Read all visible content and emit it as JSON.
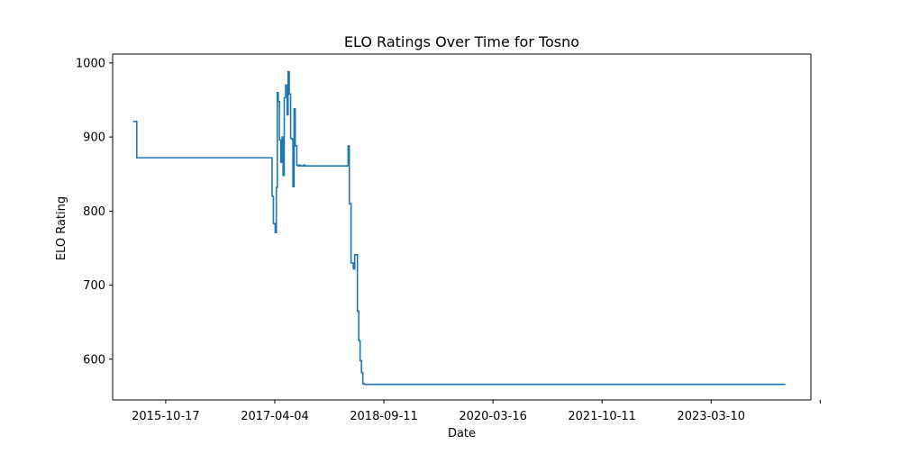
{
  "chart_data": {
    "type": "line",
    "title": "ELO Ratings Over Time for Tosno",
    "xlabel": "Date",
    "ylabel": "ELO Rating",
    "x_axis_type": "date",
    "xlim": [
      "2015-01-15",
      "2024-12-10"
    ],
    "ylim": [
      545,
      1012
    ],
    "grid": false,
    "line_color": "#1f77b4",
    "step": "post",
    "x_ticks": [
      "2015-10-17",
      "2017-04-04",
      "2018-09-11",
      "2020-03-16",
      "2021-10-11",
      "2023-03-10",
      ""
    ],
    "y_ticks": [
      600,
      700,
      800,
      900,
      1000
    ],
    "series": [
      {
        "x": [
          "2015-05-01",
          "2015-05-20",
          "2017-04-20",
          "2017-04-27",
          "2017-05-06",
          "2017-05-12",
          "2017-05-17",
          "2017-05-22",
          "2017-05-28",
          "2017-06-04",
          "2017-06-11",
          "2017-06-16",
          "2017-06-22",
          "2017-06-29",
          "2017-07-07",
          "2017-07-12",
          "2017-07-18",
          "2017-07-25",
          "2017-08-01",
          "2017-08-06",
          "2017-08-12",
          "2017-08-18",
          "2017-08-26",
          "2017-09-02",
          "2017-09-09",
          "2017-09-15",
          "2017-09-23",
          "2017-09-30",
          "2017-10-07",
          "2017-10-15",
          "2017-10-20",
          "2018-05-19",
          "2018-05-25",
          "2018-06-03",
          "2018-06-15",
          "2018-06-22",
          "2018-07-06",
          "2018-07-13",
          "2018-07-20",
          "2018-07-27",
          "2018-08-03",
          "2018-08-10",
          "2018-08-17",
          "2018-08-24",
          "2018-08-31",
          "2018-09-07",
          "2024-07-31"
        ],
        "y": [
          921,
          872,
          820,
          783,
          771,
          832,
          960,
          948,
          896,
          866,
          900,
          848,
          953,
          970,
          930,
          988,
          958,
          898,
          897,
          833,
          938,
          888,
          862,
          861,
          862,
          861,
          861,
          862,
          861,
          861,
          861,
          888,
          810,
          730,
          722,
          741,
          665,
          625,
          598,
          582,
          567,
          566,
          566,
          566,
          566,
          566,
          566
        ]
      }
    ]
  }
}
